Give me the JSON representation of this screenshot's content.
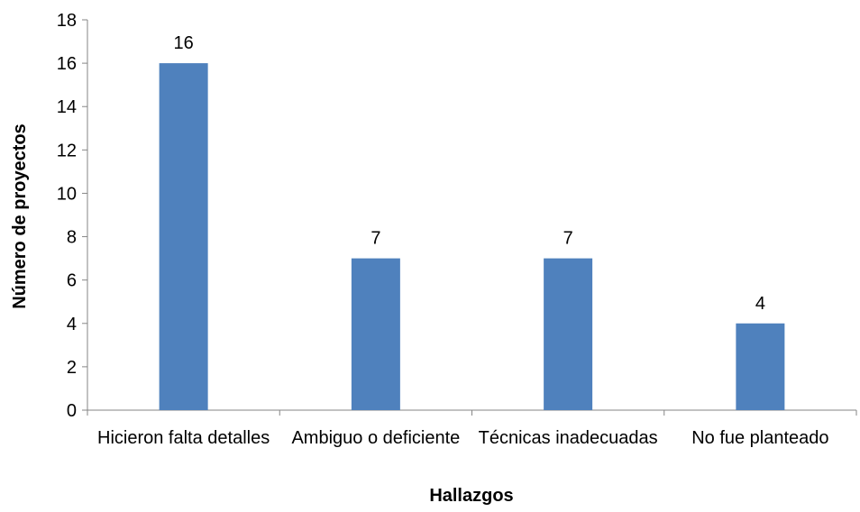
{
  "chart_data": {
    "type": "bar",
    "x_label": "Hallazgos",
    "y_label": "Número de proyectos",
    "categories": [
      "Hicieron falta detalles",
      "Ambiguo o deficiente",
      "Técnicas inadecuadas",
      "No fue planteado"
    ],
    "values": [
      16,
      7,
      7,
      4
    ],
    "color": "#4f81bd",
    "ylim": [
      0,
      18
    ],
    "yticks": [
      0,
      2,
      4,
      6,
      8,
      10,
      12,
      14,
      16,
      18
    ],
    "grid": false,
    "data_labels": true
  }
}
